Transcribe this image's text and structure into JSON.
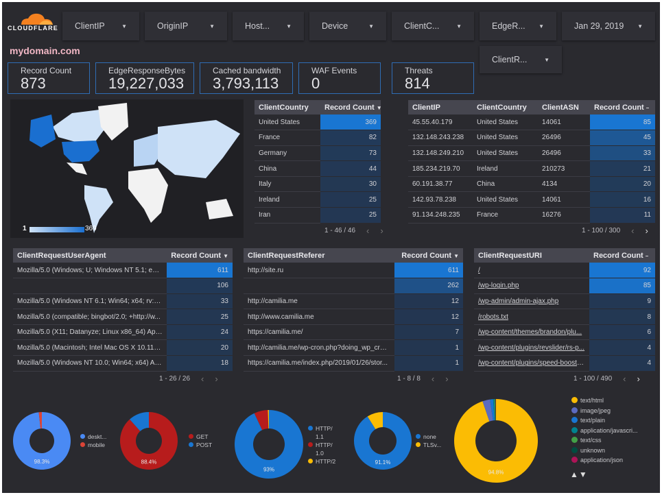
{
  "brand": {
    "logo_text": "CLOUDFLARE",
    "accent": "#f48120"
  },
  "filters": [
    {
      "label": "ClientIP"
    },
    {
      "label": "OriginIP"
    },
    {
      "label": "Host..."
    },
    {
      "label": "Device"
    },
    {
      "label": "ClientC..."
    },
    {
      "label": "EdgeR..."
    },
    {
      "label": "Jan 29, 2019"
    },
    {
      "label": "ClientR..."
    }
  ],
  "domain_title": "mydomain.com",
  "kpis": [
    {
      "label": "Record Count",
      "value": "873"
    },
    {
      "label": "EdgeResponseBytes",
      "value": "19,227,033"
    },
    {
      "label": "Cached bandwidth",
      "value": "3,793,113"
    },
    {
      "label": "WAF Events",
      "value": "0"
    },
    {
      "label": "Threats",
      "value": "814"
    }
  ],
  "map": {
    "legend_min": "1",
    "legend_max": "369",
    "colors": {
      "low": "#cfe2f7",
      "high": "#1a6fd0",
      "nodata": "#f2f2f2"
    }
  },
  "colors": {
    "bar_max": "#1976d2",
    "bar_min": "#233650"
  },
  "tables": {
    "country": {
      "headers": [
        "ClientCountry",
        "Record Count"
      ],
      "sort": "▼",
      "rows": [
        [
          "United States",
          369
        ],
        [
          "France",
          82
        ],
        [
          "Germany",
          73
        ],
        [
          "China",
          44
        ],
        [
          "Italy",
          30
        ],
        [
          "Ireland",
          25
        ],
        [
          "Iran",
          25
        ]
      ],
      "pager": "1 - 46 / 46"
    },
    "ip": {
      "headers": [
        "ClientIP",
        "ClientCountry",
        "ClientASN",
        "Record Count"
      ],
      "sort": "–",
      "rows": [
        [
          "45.55.40.179",
          "United States",
          "14061",
          85
        ],
        [
          "132.148.243.238",
          "United States",
          "26496",
          45
        ],
        [
          "132.148.249.210",
          "United States",
          "26496",
          33
        ],
        [
          "185.234.219.70",
          "Ireland",
          "210273",
          21
        ],
        [
          "60.191.38.77",
          "China",
          "4134",
          20
        ],
        [
          "142.93.78.238",
          "United States",
          "14061",
          16
        ],
        [
          "91.134.248.235",
          "France",
          "16276",
          11
        ]
      ],
      "pager": "1 - 100 / 300"
    },
    "useragent": {
      "headers": [
        "ClientRequestUserAgent",
        "Record Count"
      ],
      "sort": "▼",
      "rows": [
        [
          "Mozilla/5.0 (Windows; U; Windows NT 5.1; en-U...",
          611
        ],
        [
          "",
          106
        ],
        [
          "Mozilla/5.0 (Windows NT 6.1; Win64; x64; rv:64....",
          33
        ],
        [
          "Mozilla/5.0 (compatible; bingbot/2.0; +http://w...",
          25
        ],
        [
          "Mozilla/5.0 (X11; Datanyze; Linux x86_64) Appl...",
          24
        ],
        [
          "Mozilla/5.0 (Macintosh; Intel Mac OS X 10.11; r...",
          20
        ],
        [
          "Mozilla/5.0 (Windows NT 10.0; Win64; x64) App...",
          18
        ]
      ],
      "pager": "1 - 26 / 26"
    },
    "referer": {
      "headers": [
        "ClientRequestReferer",
        "Record Count"
      ],
      "sort": "▼",
      "rows": [
        [
          "http://site.ru",
          611
        ],
        [
          "",
          262
        ],
        [
          "http://camilia.me",
          12
        ],
        [
          "http://www.camilia.me",
          12
        ],
        [
          "https://camilia.me/",
          7
        ],
        [
          "http://camilia.me/wp-cron.php?doing_wp_cron...",
          1
        ],
        [
          "https://camilia.me/index.php/2019/01/26/stor...",
          1
        ]
      ],
      "pager": "1 - 8 / 8"
    },
    "uri": {
      "headers": [
        "ClientRequestURI",
        "Record Count"
      ],
      "sort": "–",
      "rows": [
        [
          "/",
          92
        ],
        [
          "/wp-login.php",
          85
        ],
        [
          "/wp-admin/admin-ajax.php",
          9
        ],
        [
          "/robots.txt",
          8
        ],
        [
          "/wp-content/themes/brandon/plu...",
          6
        ],
        [
          "/wp-content/plugins/revslider/rs-p...",
          4
        ],
        [
          "/wp-content/plugins/speed-booste...",
          4
        ]
      ],
      "pager": "1 - 100 / 490"
    }
  },
  "chart_data": [
    {
      "type": "pie",
      "donut": true,
      "label": "98.3%",
      "slices": [
        {
          "name": "deskt...",
          "value": 98.3,
          "color": "#4a8af4"
        },
        {
          "name": "mobile",
          "value": 1.7,
          "color": "#db4437"
        }
      ]
    },
    {
      "type": "pie",
      "donut": true,
      "label": "88.4%",
      "slices": [
        {
          "name": "GET",
          "value": 88.4,
          "color": "#b71c1c"
        },
        {
          "name": "POST",
          "value": 11.6,
          "color": "#1976d2"
        }
      ]
    },
    {
      "type": "pie",
      "donut": true,
      "label": "93%",
      "slices": [
        {
          "name": "HTTP/ 1.1",
          "value": 93,
          "color": "#1976d2"
        },
        {
          "name": "HTTP/ 1.0",
          "value": 6.5,
          "color": "#b71c1c"
        },
        {
          "name": "HTTP/2",
          "value": 0.5,
          "color": "#fbbc04"
        }
      ]
    },
    {
      "type": "pie",
      "donut": true,
      "label": "91.1%",
      "slices": [
        {
          "name": "none",
          "value": 91.1,
          "color": "#1976d2"
        },
        {
          "name": "TLSv...",
          "value": 8.9,
          "color": "#fbbc04"
        }
      ]
    },
    {
      "type": "pie",
      "donut": true,
      "label": "94.8%",
      "slices": [
        {
          "name": "text/html",
          "value": 94.8,
          "color": "#fbbc04"
        },
        {
          "name": "image/jpeg",
          "value": 2.9,
          "color": "#5c6bc0"
        },
        {
          "name": "text/plain",
          "value": 1.2,
          "color": "#1976d2"
        },
        {
          "name": "application/javascri...",
          "value": 0.5,
          "color": "#00838f"
        },
        {
          "name": "text/css",
          "value": 0.3,
          "color": "#43a047"
        },
        {
          "name": "unknown",
          "value": 0.2,
          "color": "#004d40"
        },
        {
          "name": "application/json",
          "value": 0.1,
          "color": "#ad1457"
        }
      ]
    }
  ],
  "legend_pager": "▲▼"
}
